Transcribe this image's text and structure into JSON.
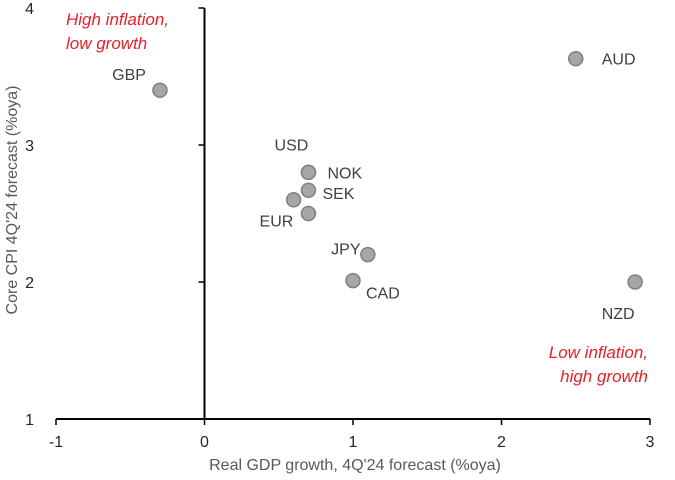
{
  "chart_data": {
    "type": "scatter",
    "title": "",
    "xlabel": "Real GDP growth, 4Q'24 forecast (%oya)",
    "ylabel": "Core CPI 4Q'24 forecast (%oya)",
    "xlim": [
      -1,
      3
    ],
    "ylim": [
      1,
      4
    ],
    "xticks": [
      "-1",
      "0",
      "1",
      "2",
      "3"
    ],
    "yticks": [
      "1",
      "2",
      "3",
      "4"
    ],
    "grid": false,
    "legend": "none",
    "marker_color": "#a6a6a6",
    "points": [
      {
        "label": "GBP",
        "x": -0.3,
        "y": 3.4
      },
      {
        "label": "AUD",
        "x": 2.5,
        "y": 3.63
      },
      {
        "label": "USD",
        "x": 0.7,
        "y": 2.8
      },
      {
        "label": "NOK",
        "x": 0.7,
        "y": 2.8
      },
      {
        "label": "SEK",
        "x": 0.7,
        "y": 2.67
      },
      {
        "label": "EUR",
        "x": 0.6,
        "y": 2.6
      },
      {
        "label": "EUR",
        "x": 0.7,
        "y": 2.5
      },
      {
        "label": "JPY",
        "x": 1.1,
        "y": 2.2
      },
      {
        "label": "CAD",
        "x": 1.0,
        "y": 2.01
      },
      {
        "label": "NZD",
        "x": 2.9,
        "y": 2.0
      }
    ],
    "annotations": [
      {
        "lines": [
          "High inflation,",
          "low growth"
        ],
        "color": "#e8202a"
      },
      {
        "lines": [
          "Low inflation,",
          "high growth"
        ],
        "color": "#e8202a"
      }
    ]
  }
}
